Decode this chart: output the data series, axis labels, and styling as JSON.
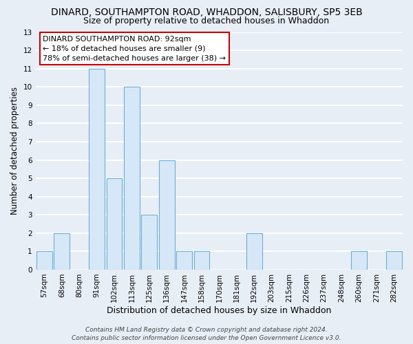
{
  "title": "DINARD, SOUTHAMPTON ROAD, WHADDON, SALISBURY, SP5 3EB",
  "subtitle": "Size of property relative to detached houses in Whaddon",
  "xlabel": "Distribution of detached houses by size in Whaddon",
  "ylabel": "Number of detached properties",
  "bins": [
    "57sqm",
    "68sqm",
    "80sqm",
    "91sqm",
    "102sqm",
    "113sqm",
    "125sqm",
    "136sqm",
    "147sqm",
    "158sqm",
    "170sqm",
    "181sqm",
    "192sqm",
    "203sqm",
    "215sqm",
    "226sqm",
    "237sqm",
    "248sqm",
    "260sqm",
    "271sqm",
    "282sqm"
  ],
  "values": [
    1,
    2,
    0,
    11,
    5,
    10,
    3,
    6,
    1,
    1,
    0,
    0,
    2,
    0,
    0,
    0,
    0,
    0,
    1,
    0,
    1
  ],
  "bar_color": "#d6e8f7",
  "bar_edge_color": "#6aaed6",
  "annotation_line1": "DINARD SOUTHAMPTON ROAD: 92sqm",
  "annotation_line2": "← 18% of detached houses are smaller (9)",
  "annotation_line3": "78% of semi-detached houses are larger (38) →",
  "annotation_box_facecolor": "#ffffff",
  "annotation_box_edgecolor": "#cc0000",
  "ylim": [
    0,
    13
  ],
  "yticks": [
    0,
    1,
    2,
    3,
    4,
    5,
    6,
    7,
    8,
    9,
    10,
    11,
    12,
    13
  ],
  "footer1": "Contains HM Land Registry data © Crown copyright and database right 2024.",
  "footer2": "Contains public sector information licensed under the Open Government Licence v3.0.",
  "bg_color": "#e8eef6",
  "plot_bg_color": "#e8eef6",
  "grid_color": "#ffffff",
  "title_fontsize": 10,
  "subtitle_fontsize": 9,
  "tick_fontsize": 7.5,
  "ylabel_fontsize": 8.5,
  "xlabel_fontsize": 9,
  "annot_fontsize": 8,
  "footer_fontsize": 6.5
}
